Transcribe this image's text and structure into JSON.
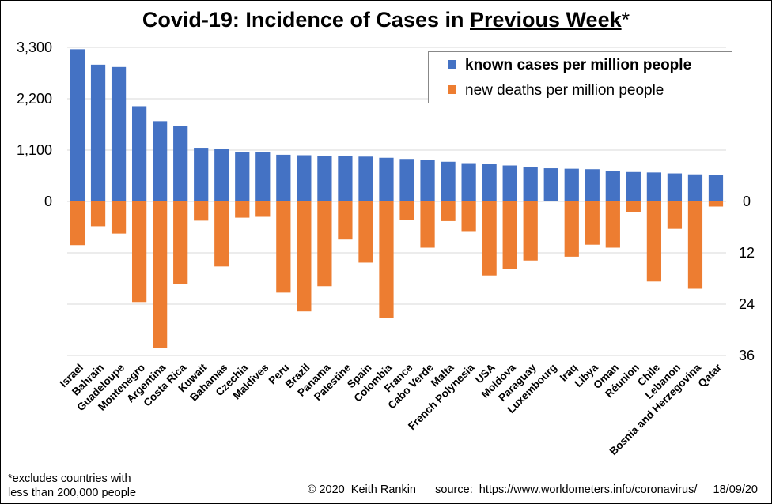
{
  "title": {
    "main": "Covid-19: Incidence of Cases in ",
    "underlined": "Previous Week",
    "asterisk": "*"
  },
  "footnote": {
    "line1": "*excludes countries with",
    "line2": "less than 200,000 people"
  },
  "credits": {
    "copyright": "© 2020  Keith Rankin",
    "source": "source:  https://www.worldometers.info/coronavirus/",
    "date": "18/09/20"
  },
  "colors": {
    "cases": "#4472C4",
    "deaths": "#ED7D31",
    "grid": "#d9d9d9"
  },
  "chart_data": {
    "type": "bar",
    "title": "Covid-19: Incidence of Cases in Previous Week*",
    "categories": [
      "Israel",
      "Bahrain",
      "Guadeloupe",
      "Montenegro",
      "Argentina",
      "Costa Rica",
      "Kuwait",
      "Bahamas",
      "Czechia",
      "Maldives",
      "Peru",
      "Brazil",
      "Panama",
      "Palestine",
      "Spain",
      "Colombia",
      "France",
      "Cabo Verde",
      "Malta",
      "French Polynesia",
      "USA",
      "Moldova",
      "Paraguay",
      "Luxembourg",
      "Iraq",
      "Libya",
      "Oman",
      "Réunion",
      "Chile",
      "Lebanon",
      "Bosnia and Herzegovina",
      "Qatar"
    ],
    "series": [
      {
        "name": "known cases per million people",
        "axis": "left",
        "values": [
          3260,
          2930,
          2880,
          2040,
          1720,
          1620,
          1150,
          1130,
          1060,
          1050,
          1000,
          990,
          980,
          975,
          960,
          935,
          910,
          880,
          850,
          820,
          810,
          770,
          730,
          710,
          700,
          690,
          650,
          630,
          620,
          600,
          580,
          560
        ]
      },
      {
        "name": "new deaths per million people",
        "axis": "right",
        "values": [
          10.2,
          5.8,
          7.5,
          23.5,
          34.2,
          19.2,
          4.5,
          15.2,
          3.8,
          3.6,
          21.3,
          25.7,
          19.8,
          8.9,
          14.3,
          27.2,
          4.3,
          10.8,
          4.6,
          7.1,
          17.3,
          15.7,
          13.8,
          0,
          12.9,
          10.1,
          10.8,
          2.4,
          18.7,
          6.4,
          20.4,
          1.2
        ]
      }
    ],
    "left_axis": {
      "ticks": [
        0,
        1100,
        2200,
        3300
      ],
      "tick_labels": [
        "0",
        "1,100",
        "2,200",
        "3,300"
      ],
      "max": 3300
    },
    "right_axis": {
      "ticks": [
        0,
        12,
        24,
        36
      ],
      "tick_labels": [
        "0",
        "12",
        "24",
        "36"
      ],
      "max": 36,
      "inverted": true
    },
    "grid": true,
    "legend_position": "top-right"
  }
}
